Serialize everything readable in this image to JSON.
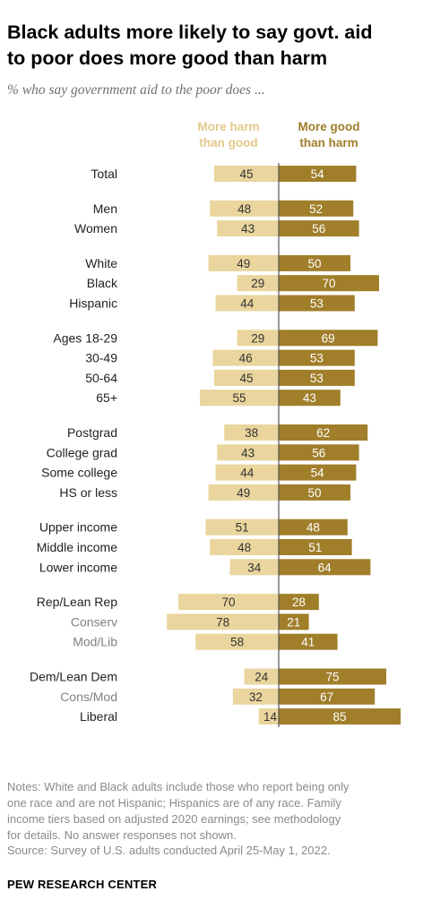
{
  "title_lines": [
    "Black adults more likely to say govt. aid",
    "to poor does more good than harm"
  ],
  "subtitle": "% who say government aid to the poor does ...",
  "legend": {
    "harm_lines": [
      "More harm",
      "than good"
    ],
    "good_lines": [
      "More good",
      "than harm"
    ]
  },
  "colors": {
    "harm": "#e9d59d",
    "good": "#a07e2a",
    "harm_text": "#e3c98a",
    "good_text": "#a07e2a",
    "label": "#222222",
    "sublabel": "#808080",
    "axis": "#555555"
  },
  "chart_data": {
    "type": "bar",
    "orientation": "diverging-horizontal",
    "series": [
      {
        "name": "More harm than good"
      },
      {
        "name": "More good than harm"
      }
    ],
    "groups": [
      {
        "rows": [
          {
            "label": "Total",
            "harm": 45,
            "good": 54,
            "sub": false
          }
        ]
      },
      {
        "rows": [
          {
            "label": "Men",
            "harm": 48,
            "good": 52,
            "sub": false
          },
          {
            "label": "Women",
            "harm": 43,
            "good": 56,
            "sub": false
          }
        ]
      },
      {
        "rows": [
          {
            "label": "White",
            "harm": 49,
            "good": 50,
            "sub": false
          },
          {
            "label": "Black",
            "harm": 29,
            "good": 70,
            "sub": false
          },
          {
            "label": "Hispanic",
            "harm": 44,
            "good": 53,
            "sub": false
          }
        ]
      },
      {
        "rows": [
          {
            "label": "Ages 18-29",
            "harm": 29,
            "good": 69,
            "sub": false
          },
          {
            "label": "30-49",
            "harm": 46,
            "good": 53,
            "sub": false
          },
          {
            "label": "50-64",
            "harm": 45,
            "good": 53,
            "sub": false
          },
          {
            "label": "65+",
            "harm": 55,
            "good": 43,
            "sub": false
          }
        ]
      },
      {
        "rows": [
          {
            "label": "Postgrad",
            "harm": 38,
            "good": 62,
            "sub": false
          },
          {
            "label": "College grad",
            "harm": 43,
            "good": 56,
            "sub": false
          },
          {
            "label": "Some college",
            "harm": 44,
            "good": 54,
            "sub": false
          },
          {
            "label": "HS or less",
            "harm": 49,
            "good": 50,
            "sub": false
          }
        ]
      },
      {
        "rows": [
          {
            "label": "Upper income",
            "harm": 51,
            "good": 48,
            "sub": false
          },
          {
            "label": "Middle income",
            "harm": 48,
            "good": 51,
            "sub": false
          },
          {
            "label": "Lower income",
            "harm": 34,
            "good": 64,
            "sub": false
          }
        ]
      },
      {
        "rows": [
          {
            "label": "Rep/Lean Rep",
            "harm": 70,
            "good": 28,
            "sub": false
          },
          {
            "label": "Conserv",
            "harm": 78,
            "good": 21,
            "sub": true
          },
          {
            "label": "Mod/Lib",
            "harm": 58,
            "good": 41,
            "sub": true
          }
        ]
      },
      {
        "rows": [
          {
            "label": "Dem/Lean Dem",
            "harm": 24,
            "good": 75,
            "sub": false
          },
          {
            "label": "Cons/Mod",
            "harm": 32,
            "good": 67,
            "sub": true
          },
          {
            "label": "Liberal",
            "harm": 14,
            "good": 85,
            "sub": false
          }
        ]
      }
    ]
  },
  "notes_lines": [
    "Notes: White and Black adults include those who report being only",
    "one race and are not Hispanic; Hispanics are of any race. Family",
    "income tiers based on adjusted 2020 earnings; see methodology",
    "for details. No answer responses not shown."
  ],
  "source": "Source: Survey of U.S. adults conducted April 25-May 1, 2022.",
  "brand": "PEW RESEARCH CENTER"
}
